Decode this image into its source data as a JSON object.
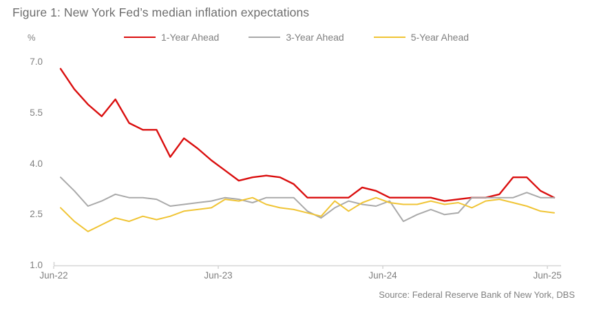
{
  "title": "Figure 1: New York Fed’s median inflation expectations",
  "y_axis_unit": "%",
  "source": "Source: Federal Reserve Bank of New York, DBS",
  "colors": {
    "series_1yr": "#da0e0e",
    "series_3yr": "#a9a9a9",
    "series_5yr": "#f0c434",
    "axis_line": "#d6d6d6",
    "title_text": "#6e6e6e",
    "axis_text": "#7f7f7f"
  },
  "chart_data": {
    "type": "line",
    "x": [
      "Jun-22",
      "Jul-22",
      "Aug-22",
      "Sep-22",
      "Oct-22",
      "Nov-22",
      "Dec-22",
      "Jan-23",
      "Feb-23",
      "Mar-23",
      "Apr-23",
      "May-23",
      "Jun-23",
      "Jul-23",
      "Aug-23",
      "Sep-23",
      "Oct-23",
      "Nov-23",
      "Dec-23",
      "Jan-24",
      "Feb-24",
      "Mar-24",
      "Apr-24",
      "May-24",
      "Jun-24",
      "Jul-24",
      "Aug-24",
      "Sep-24",
      "Oct-24",
      "Nov-24",
      "Dec-24",
      "Jan-25",
      "Feb-25",
      "Mar-25",
      "Apr-25",
      "May-25",
      "Jun-25"
    ],
    "series": [
      {
        "name": "1-Year Ahead",
        "color": "#da0e0e",
        "stroke_width": 2.4,
        "values": [
          6.8,
          6.2,
          5.75,
          5.4,
          5.9,
          5.2,
          5.0,
          5.0,
          4.2,
          4.75,
          4.45,
          4.1,
          3.8,
          3.5,
          3.6,
          3.65,
          3.6,
          3.4,
          3.0,
          3.0,
          3.0,
          3.0,
          3.3,
          3.2,
          3.0,
          3.0,
          3.0,
          3.0,
          2.9,
          2.95,
          3.0,
          3.0,
          3.1,
          3.6,
          3.6,
          3.2,
          3.0
        ]
      },
      {
        "name": "3-Year Ahead",
        "color": "#a9a9a9",
        "stroke_width": 2,
        "values": [
          3.6,
          3.2,
          2.75,
          2.9,
          3.1,
          3.0,
          3.0,
          2.95,
          2.75,
          2.8,
          2.85,
          2.9,
          3.0,
          2.95,
          2.85,
          3.0,
          3.0,
          3.0,
          2.6,
          2.4,
          2.7,
          2.9,
          2.8,
          2.75,
          2.9,
          2.3,
          2.5,
          2.65,
          2.5,
          2.55,
          3.0,
          3.0,
          3.0,
          3.0,
          3.15,
          3.0,
          3.0
        ]
      },
      {
        "name": "5-Year Ahead",
        "color": "#f0c434",
        "stroke_width": 2,
        "values": [
          2.7,
          2.3,
          2.0,
          2.2,
          2.4,
          2.3,
          2.45,
          2.35,
          2.45,
          2.6,
          2.65,
          2.7,
          2.95,
          2.9,
          3.0,
          2.8,
          2.7,
          2.65,
          2.55,
          2.45,
          2.9,
          2.6,
          2.85,
          3.0,
          2.85,
          2.8,
          2.8,
          2.9,
          2.8,
          2.85,
          2.7,
          2.9,
          2.95,
          2.85,
          2.75,
          2.6,
          2.55
        ]
      }
    ],
    "ylim": [
      1.0,
      7.0
    ],
    "y_ticks": [
      "7.0",
      "5.5",
      "4.0",
      "2.5",
      "1.0"
    ],
    "x_ticks": [
      "Jun-22",
      "Jun-23",
      "Jun-24",
      "Jun-25"
    ],
    "x_tick_month_index": [
      0,
      12,
      24,
      36
    ],
    "legend_position": "top",
    "grid": false
  }
}
